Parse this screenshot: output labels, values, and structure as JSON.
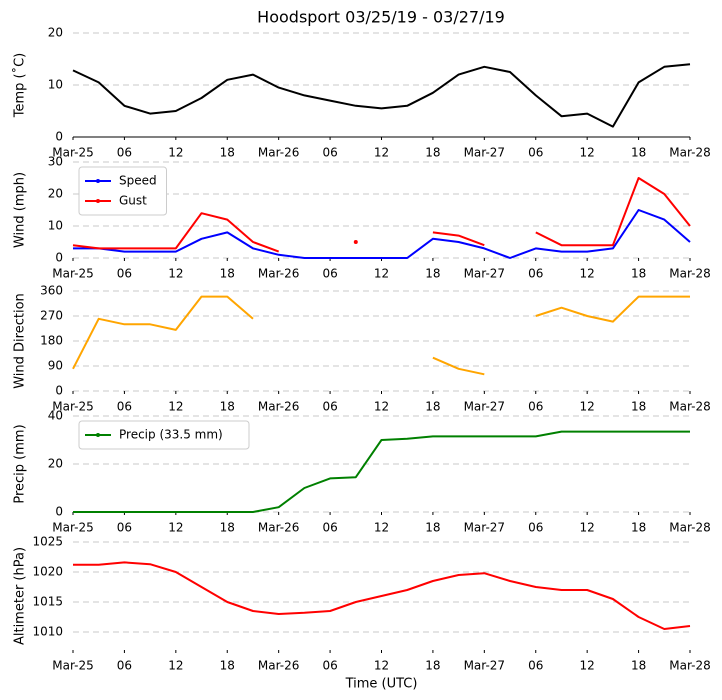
{
  "chart_data": [
    {
      "type": "line",
      "title": "Hoodsport 03/25/19 - 03/27/19",
      "ylabel": "Temp (˚C)",
      "x": [
        0,
        3,
        6,
        9,
        12,
        15,
        18,
        21,
        24,
        27,
        30,
        33,
        36,
        39,
        42,
        45,
        48,
        51,
        54,
        57,
        60,
        63,
        66,
        69,
        72
      ],
      "values": [
        12.8,
        10.5,
        6,
        4.5,
        5,
        7.5,
        11,
        12,
        9.5,
        8,
        7,
        6,
        5.5,
        6,
        8.5,
        12,
        13.5,
        12.5,
        8,
        4,
        4.5,
        2,
        10.5,
        13.5,
        14
      ],
      "color": "#000000",
      "xlim": [
        0,
        72
      ],
      "xticks": [
        {
          "value": 0,
          "label": "Mar-25"
        },
        {
          "value": 6,
          "label": "06"
        },
        {
          "value": 12,
          "label": "12"
        },
        {
          "value": 18,
          "label": "18"
        },
        {
          "value": 24,
          "label": "Mar-26"
        },
        {
          "value": 30,
          "label": "06"
        },
        {
          "value": 36,
          "label": "12"
        },
        {
          "value": 42,
          "label": "18"
        },
        {
          "value": 48,
          "label": "Mar-27"
        },
        {
          "value": 54,
          "label": "06"
        },
        {
          "value": 60,
          "label": "12"
        },
        {
          "value": 66,
          "label": "18"
        },
        {
          "value": 72,
          "label": "Mar-28"
        }
      ],
      "ylim": [
        0,
        20
      ],
      "yticks": [
        0,
        10,
        20
      ],
      "grid": true
    },
    {
      "type": "line",
      "ylabel": "Wind (mph)",
      "x": [
        0,
        3,
        6,
        9,
        12,
        15,
        18,
        21,
        24,
        27,
        30,
        33,
        36,
        39,
        42,
        45,
        48,
        51,
        54,
        57,
        60,
        63,
        66,
        69,
        72
      ],
      "series": [
        {
          "name": "Speed",
          "color": "#0000ff",
          "values": [
            3,
            3,
            2,
            2,
            2,
            6,
            8,
            3,
            1,
            0,
            0,
            0,
            0,
            0,
            6,
            5,
            3,
            0,
            3,
            2,
            2,
            3,
            15,
            12,
            5
          ]
        },
        {
          "name": "Gust",
          "color": "#ff0000",
          "values": [
            4,
            3,
            3,
            3,
            3,
            14,
            12,
            5,
            2,
            null,
            null,
            5,
            null,
            null,
            8,
            7,
            4,
            null,
            8,
            4,
            4,
            4,
            25,
            20,
            10
          ]
        }
      ],
      "xlim": [
        0,
        72
      ],
      "xticks": [
        {
          "value": 0,
          "label": "Mar-25"
        },
        {
          "value": 6,
          "label": "06"
        },
        {
          "value": 12,
          "label": "12"
        },
        {
          "value": 18,
          "label": "18"
        },
        {
          "value": 24,
          "label": "Mar-26"
        },
        {
          "value": 30,
          "label": "06"
        },
        {
          "value": 36,
          "label": "12"
        },
        {
          "value": 42,
          "label": "18"
        },
        {
          "value": 48,
          "label": "Mar-27"
        },
        {
          "value": 54,
          "label": "06"
        },
        {
          "value": 60,
          "label": "12"
        },
        {
          "value": 66,
          "label": "18"
        },
        {
          "value": 72,
          "label": "Mar-28"
        }
      ],
      "ylim": [
        0,
        30
      ],
      "yticks": [
        0,
        10,
        20,
        30
      ],
      "grid": true,
      "legend": "upper left"
    },
    {
      "type": "line",
      "ylabel": "Wind Direction",
      "x": [
        0,
        3,
        6,
        9,
        12,
        15,
        18,
        21,
        24,
        27,
        30,
        33,
        36,
        39,
        42,
        45,
        48,
        51,
        54,
        57,
        60,
        63,
        66,
        69,
        72
      ],
      "values": [
        80,
        260,
        240,
        240,
        220,
        340,
        340,
        260,
        null,
        null,
        null,
        null,
        null,
        null,
        120,
        80,
        60,
        null,
        270,
        300,
        270,
        250,
        340,
        340,
        340
      ],
      "color": "#ffa500",
      "xlim": [
        0,
        72
      ],
      "xticks": [
        {
          "value": 0,
          "label": "Mar-25"
        },
        {
          "value": 6,
          "label": "06"
        },
        {
          "value": 12,
          "label": "12"
        },
        {
          "value": 18,
          "label": "18"
        },
        {
          "value": 24,
          "label": "Mar-26"
        },
        {
          "value": 30,
          "label": "06"
        },
        {
          "value": 36,
          "label": "12"
        },
        {
          "value": 42,
          "label": "18"
        },
        {
          "value": 48,
          "label": "Mar-27"
        },
        {
          "value": 54,
          "label": "06"
        },
        {
          "value": 60,
          "label": "12"
        },
        {
          "value": 66,
          "label": "18"
        },
        {
          "value": 72,
          "label": "Mar-28"
        }
      ],
      "ylim": [
        0,
        360
      ],
      "yticks": [
        0,
        90,
        180,
        270,
        360
      ],
      "grid": true
    },
    {
      "type": "line",
      "ylabel": "Precip (mm)",
      "x": [
        0,
        3,
        6,
        9,
        12,
        15,
        18,
        21,
        24,
        27,
        30,
        33,
        36,
        39,
        42,
        45,
        48,
        51,
        54,
        57,
        60,
        63,
        66,
        69,
        72
      ],
      "series": [
        {
          "name": "Precip (33.5 mm)",
          "color": "#008000",
          "values": [
            0,
            0,
            0,
            0,
            0,
            0,
            0,
            0,
            2,
            10,
            14,
            14.5,
            30,
            30.5,
            31.5,
            31.5,
            31.5,
            31.5,
            31.5,
            33.5,
            33.5,
            33.5,
            33.5,
            33.5,
            33.5
          ]
        }
      ],
      "xlim": [
        0,
        72
      ],
      "xticks": [
        {
          "value": 0,
          "label": "Mar-25"
        },
        {
          "value": 6,
          "label": "06"
        },
        {
          "value": 12,
          "label": "12"
        },
        {
          "value": 18,
          "label": "18"
        },
        {
          "value": 24,
          "label": "Mar-26"
        },
        {
          "value": 30,
          "label": "06"
        },
        {
          "value": 36,
          "label": "12"
        },
        {
          "value": 42,
          "label": "18"
        },
        {
          "value": 48,
          "label": "Mar-27"
        },
        {
          "value": 54,
          "label": "06"
        },
        {
          "value": 60,
          "label": "12"
        },
        {
          "value": 66,
          "label": "18"
        },
        {
          "value": 72,
          "label": "Mar-28"
        }
      ],
      "ylim": [
        0,
        40
      ],
      "yticks": [
        0,
        20,
        40
      ],
      "grid": true,
      "legend": "upper left"
    },
    {
      "type": "line",
      "ylabel": "Altimeter (hPa)",
      "xlabel": "Time (UTC)",
      "x": [
        0,
        3,
        6,
        9,
        12,
        15,
        18,
        21,
        24,
        27,
        30,
        33,
        36,
        39,
        42,
        45,
        48,
        51,
        54,
        57,
        60,
        63,
        66,
        69,
        72
      ],
      "values": [
        1021.2,
        1021.2,
        1021.6,
        1021.3,
        1020,
        1017.5,
        1015,
        1013.5,
        1013,
        1013.2,
        1013.5,
        1015,
        1016,
        1017,
        1018.5,
        1019.5,
        1019.8,
        1018.5,
        1017.5,
        1017,
        1017,
        1015.5,
        1012.5,
        1010.5,
        1011
      ],
      "color": "#ff0000",
      "xlim": [
        0,
        72
      ],
      "xticks": [
        {
          "value": 0,
          "label": "Mar-25"
        },
        {
          "value": 6,
          "label": "06"
        },
        {
          "value": 12,
          "label": "12"
        },
        {
          "value": 18,
          "label": "18"
        },
        {
          "value": 24,
          "label": "Mar-26"
        },
        {
          "value": 30,
          "label": "06"
        },
        {
          "value": 36,
          "label": "12"
        },
        {
          "value": 42,
          "label": "18"
        },
        {
          "value": 48,
          "label": "Mar-27"
        },
        {
          "value": 54,
          "label": "06"
        },
        {
          "value": 60,
          "label": "12"
        },
        {
          "value": 66,
          "label": "18"
        },
        {
          "value": 72,
          "label": "Mar-28"
        }
      ],
      "ylim": [
        1007,
        1025
      ],
      "yticks": [
        1010,
        1015,
        1020,
        1025
      ],
      "grid": true
    }
  ]
}
